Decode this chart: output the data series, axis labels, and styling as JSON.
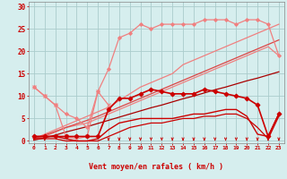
{
  "x": [
    0,
    1,
    2,
    3,
    4,
    5,
    6,
    7,
    8,
    9,
    10,
    11,
    12,
    13,
    14,
    15,
    16,
    17,
    18,
    19,
    20,
    21,
    22,
    23
  ],
  "series": [
    {
      "name": "light_jagged_upper",
      "y": [
        12,
        10,
        8,
        1,
        0.5,
        1,
        11,
        8,
        null,
        null,
        null,
        null,
        null,
        null,
        null,
        null,
        null,
        null,
        null,
        null,
        null,
        null,
        null,
        null
      ],
      "color": "#f08080",
      "lw": 0.9,
      "marker": "x",
      "ms": 3.0,
      "zorder": 3
    },
    {
      "name": "light_upper_with_dots",
      "y": [
        12,
        10,
        8,
        6,
        5,
        3,
        11,
        16,
        23,
        24,
        26,
        25,
        26,
        26,
        26,
        26,
        27,
        27,
        27,
        26,
        27,
        27,
        26,
        19
      ],
      "color": "#f08080",
      "lw": 0.9,
      "marker": "D",
      "ms": 2.0,
      "zorder": 3
    },
    {
      "name": "light_diag_upper",
      "y": [
        0.5,
        1.5,
        2.5,
        3.5,
        4.5,
        5.5,
        6.5,
        7.5,
        9,
        10.5,
        12,
        13,
        14,
        15,
        17,
        18,
        19,
        20,
        21,
        22,
        23,
        24,
        25,
        26
      ],
      "color": "#f08080",
      "lw": 0.9,
      "marker": null,
      "ms": 0,
      "zorder": 2
    },
    {
      "name": "light_diag_lower",
      "y": [
        0.5,
        1,
        2,
        3,
        3.5,
        4,
        5,
        6,
        7,
        8,
        9,
        10,
        11,
        12,
        13,
        14,
        15,
        16,
        17,
        18,
        19,
        20,
        21,
        19
      ],
      "color": "#f08080",
      "lw": 0.9,
      "marker": null,
      "ms": 0,
      "zorder": 2
    },
    {
      "name": "dark_upper_dots",
      "y": [
        1,
        1,
        1,
        1,
        1,
        1,
        1,
        7,
        9.5,
        9.5,
        10.5,
        11.5,
        11,
        10.5,
        10.5,
        10.5,
        11.5,
        11,
        10.5,
        10,
        9.5,
        8,
        1,
        6
      ],
      "color": "#cc0000",
      "lw": 1.2,
      "marker": "D",
      "ms": 2.5,
      "zorder": 4
    },
    {
      "name": "dark_mid",
      "y": [
        1,
        1,
        1,
        0.5,
        0,
        0,
        0.5,
        2.5,
        4,
        4.5,
        5,
        5,
        5,
        5,
        5.5,
        6,
        6,
        6.5,
        7,
        7,
        5.5,
        1.5,
        1,
        6
      ],
      "color": "#cc0000",
      "lw": 1.0,
      "marker": null,
      "ms": 0,
      "zorder": 3
    },
    {
      "name": "dark_lower1",
      "y": [
        0.5,
        0.5,
        0.5,
        0,
        0,
        0,
        0,
        1,
        2,
        3,
        3.5,
        4,
        4,
        4.5,
        5,
        5,
        5.5,
        5.5,
        6,
        6,
        5,
        3,
        0.5,
        5.5
      ],
      "color": "#cc0000",
      "lw": 0.9,
      "marker": null,
      "ms": 0,
      "zorder": 3
    },
    {
      "name": "dark_diag_upper",
      "y": [
        0.5,
        1.3,
        2.1,
        3,
        3.8,
        4.6,
        5.5,
        6.5,
        7.5,
        8.5,
        9.5,
        10.5,
        11.5,
        12.5,
        13.5,
        14.5,
        15.5,
        16.5,
        17.5,
        18.5,
        19.5,
        20.5,
        21.5,
        22.5
      ],
      "color": "#dd4444",
      "lw": 0.9,
      "marker": null,
      "ms": 0,
      "zorder": 2
    },
    {
      "name": "dark_diag_lower",
      "y": [
        0.2,
        0.7,
        1.3,
        2,
        2.6,
        3.2,
        3.9,
        4.6,
        5.3,
        6,
        6.7,
        7.4,
        8,
        8.7,
        9.4,
        10,
        10.7,
        11.4,
        12,
        12.7,
        13.4,
        14,
        14.7,
        15.4
      ],
      "color": "#aa0000",
      "lw": 0.9,
      "marker": null,
      "ms": 0,
      "zorder": 2
    }
  ],
  "xlim": [
    -0.5,
    23.5
  ],
  "ylim": [
    -0.5,
    31
  ],
  "yticks": [
    0,
    5,
    10,
    15,
    20,
    25,
    30
  ],
  "xticks": [
    0,
    1,
    2,
    3,
    4,
    5,
    6,
    7,
    8,
    9,
    10,
    11,
    12,
    13,
    14,
    15,
    16,
    17,
    18,
    19,
    20,
    21,
    22,
    23
  ],
  "xlabel": "Vent moyen/en rafales ( km/h )",
  "bg_color": "#d6eeee",
  "grid_color": "#aacccc",
  "tick_color": "#cc0000",
  "label_color": "#cc0000",
  "arrow_color": "#cc0000",
  "arrows_x": [
    0,
    1,
    7,
    8,
    9,
    10,
    11,
    12,
    13,
    14,
    15,
    16,
    17,
    18,
    19,
    20,
    21,
    22,
    23
  ]
}
